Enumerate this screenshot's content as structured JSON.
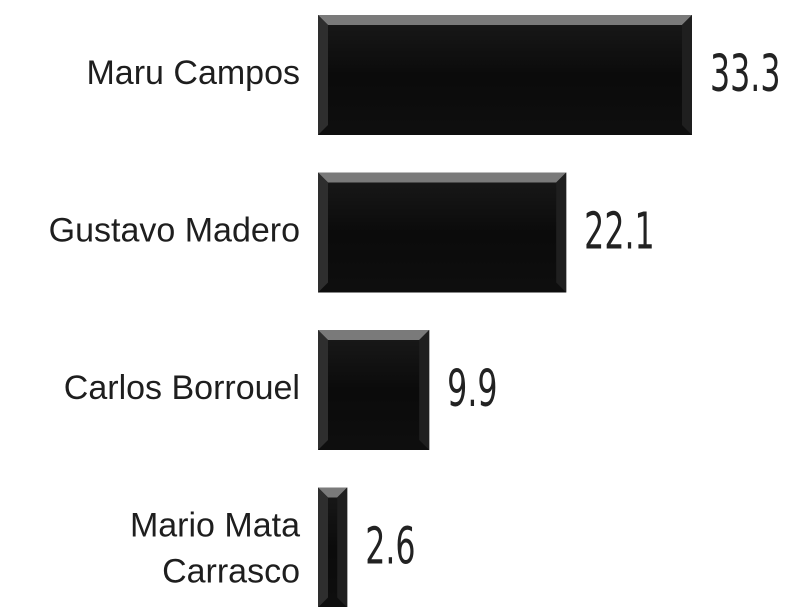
{
  "chart_data": {
    "type": "bar",
    "orientation": "horizontal",
    "categories": [
      "Maru Campos",
      "Gustavo Madero",
      "Carlos Borrouel",
      "Mario Mata Carrasco"
    ],
    "values": [
      33.3,
      22.1,
      9.9,
      2.6
    ],
    "color": "#0d0d0d"
  }
}
